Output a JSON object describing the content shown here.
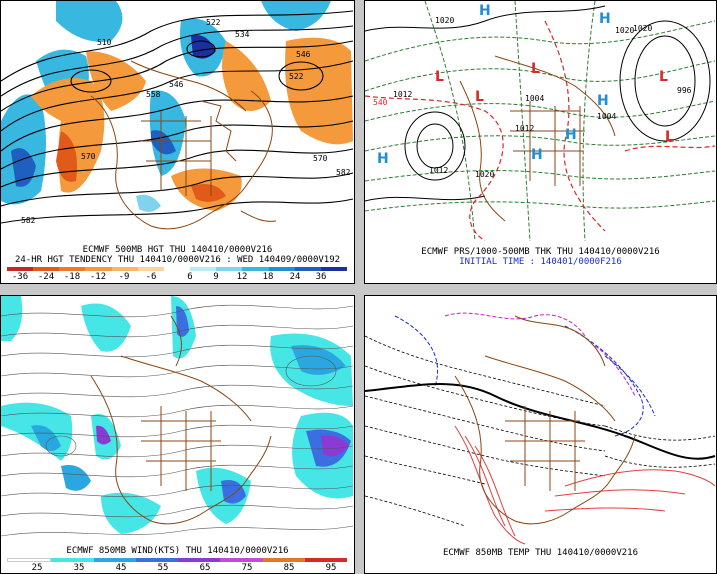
{
  "panels": {
    "p1": {
      "caption_line1": "ECMWF 500MB HGT THU 140410/0000V216",
      "caption_line2": "24-HR HGT TENDENCY THU 140410/0000V216 : WED 140409/0000V192",
      "contour_labels": [
        "510",
        "522",
        "534",
        "546",
        "558",
        "570",
        "582",
        "546",
        "522",
        "570",
        "582"
      ],
      "scale_ticks": [
        "-36",
        "-24",
        "-18",
        "-12",
        "-9",
        "-6",
        "6",
        "9",
        "12",
        "18",
        "24",
        "36"
      ],
      "scale_colors": [
        "#c62828",
        "#e05a1a",
        "#ee7a24",
        "#f59a3c",
        "#f8b56a",
        "#fbd39f",
        "#bfe8f5",
        "#7fd3ec",
        "#38b8e0",
        "#1f8fd1",
        "#1e5fc0",
        "#1c2fa0"
      ]
    },
    "p2": {
      "caption_line1": "ECMWF PRS/1000-500MB THK THU 140410/0000V216",
      "caption_line2": "INITIAL TIME : 140401/0000F216",
      "center_labels": [
        "H",
        "H",
        "H",
        "H",
        "L",
        "L",
        "L",
        "L",
        "L",
        "H",
        "H"
      ],
      "isobar_labels": [
        "1020",
        "1012",
        "1004",
        "1012",
        "1020",
        "1004",
        "996",
        "1020",
        "540",
        "1012",
        "1020"
      ]
    },
    "p3": {
      "caption_line1": "ECMWF 850MB WIND(KTS) THU 140410/0000V216",
      "scale_ticks": [
        "25",
        "35",
        "45",
        "55",
        "65",
        "75",
        "85",
        "95"
      ],
      "scale_colors": [
        "#ffffff",
        "#47e6e6",
        "#2aa7e0",
        "#3b6ee0",
        "#8a3bd6",
        "#c24cd6",
        "#e07a2a",
        "#d62a2a"
      ]
    },
    "p4": {
      "caption_line1": "ECMWF 850MB TEMP THU 140410/0000V216"
    }
  }
}
